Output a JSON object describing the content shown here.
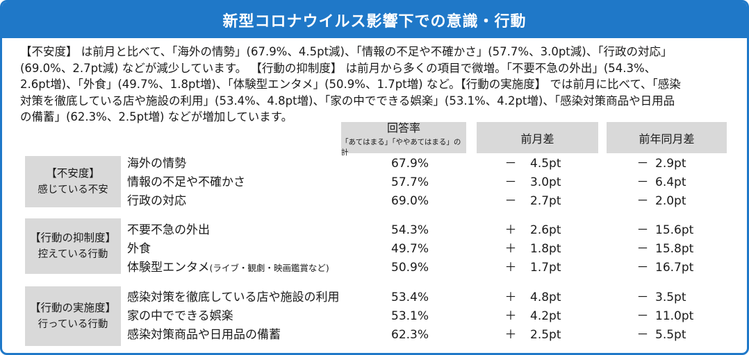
{
  "title": "新型コロナウイルス影響下での意識・行動",
  "paragraph_lines": [
    "【不安度】 は前月と比べて、「海外の情勢」(67.9%、4.5pt減)、「情報の不足や不確かさ」(57.7%、3.0pt減)、「行政の対応」",
    "(69.0%、2.7pt減) などが減少しています。 【行動の抑制度】 は前月から多くの項目で微増。「不要不急の外出」(54.3%、",
    "2.6pt増)、「外食」(49.7%、1.8pt増)、「体験型エンタメ」(50.9%、1.7pt増) など。【行動の実施度】 では前月に比べて、「感染",
    "対策を徹底している店や施設の利用」(53.4%、4.8pt増)、「家の中でできる娯楽」(53.1%、4.2pt増)、「感染対策商品や日用品",
    "の備蓄」(62.3%、2.5pt増) などが増加しています。"
  ],
  "table": {
    "headers": {
      "rate": "回答率",
      "rate_sub": "「あてはまる」「ややあてはまる」の計",
      "mom": "前月差",
      "yoy": "前年同月差"
    },
    "groups": [
      {
        "label": "【不安度】",
        "sublabel": "感じている不安",
        "rows": [
          {
            "item": "海外の情勢",
            "note": "",
            "rate": "67.9%",
            "mom_sign": "－",
            "mom": "4.5pt",
            "yoy_sign": "－",
            "yoy": "2.9pt"
          },
          {
            "item": "情報の不足や不確かさ",
            "note": "",
            "rate": "57.7%",
            "mom_sign": "－",
            "mom": "3.0pt",
            "yoy_sign": "－",
            "yoy": "6.4pt"
          },
          {
            "item": "行政の対応",
            "note": "",
            "rate": "69.0%",
            "mom_sign": "－",
            "mom": "2.7pt",
            "yoy_sign": "－",
            "yoy": "2.0pt"
          }
        ]
      },
      {
        "label": "【行動の抑制度】",
        "sublabel": "控えている行動",
        "rows": [
          {
            "item": "不要不急の外出",
            "note": "",
            "rate": "54.3%",
            "mom_sign": "＋",
            "mom": "2.6pt",
            "yoy_sign": "－",
            "yoy": "15.6pt"
          },
          {
            "item": "外食",
            "note": "",
            "rate": "49.7%",
            "mom_sign": "＋",
            "mom": "1.8pt",
            "yoy_sign": "－",
            "yoy": "15.8pt"
          },
          {
            "item": "体験型エンタメ",
            "note": "(ライブ・観劇・映画鑑賞など)",
            "rate": "50.9%",
            "mom_sign": "＋",
            "mom": "1.7pt",
            "yoy_sign": "－",
            "yoy": "16.7pt"
          }
        ]
      },
      {
        "label": "【行動の実施度】",
        "sublabel": "行っている行動",
        "rows": [
          {
            "item": "感染対策を徹底している店や施設の利用",
            "note": "",
            "rate": "53.4%",
            "mom_sign": "＋",
            "mom": "4.8pt",
            "yoy_sign": "－",
            "yoy": "3.5pt"
          },
          {
            "item": "家の中でできる娯楽",
            "note": "",
            "rate": "53.1%",
            "mom_sign": "＋",
            "mom": "4.2pt",
            "yoy_sign": "－",
            "yoy": "11.0pt"
          },
          {
            "item": "感染対策商品や日用品の備蓄",
            "note": "",
            "rate": "62.3%",
            "mom_sign": "＋",
            "mom": "2.5pt",
            "yoy_sign": "－",
            "yoy": "5.5pt"
          }
        ]
      }
    ]
  }
}
